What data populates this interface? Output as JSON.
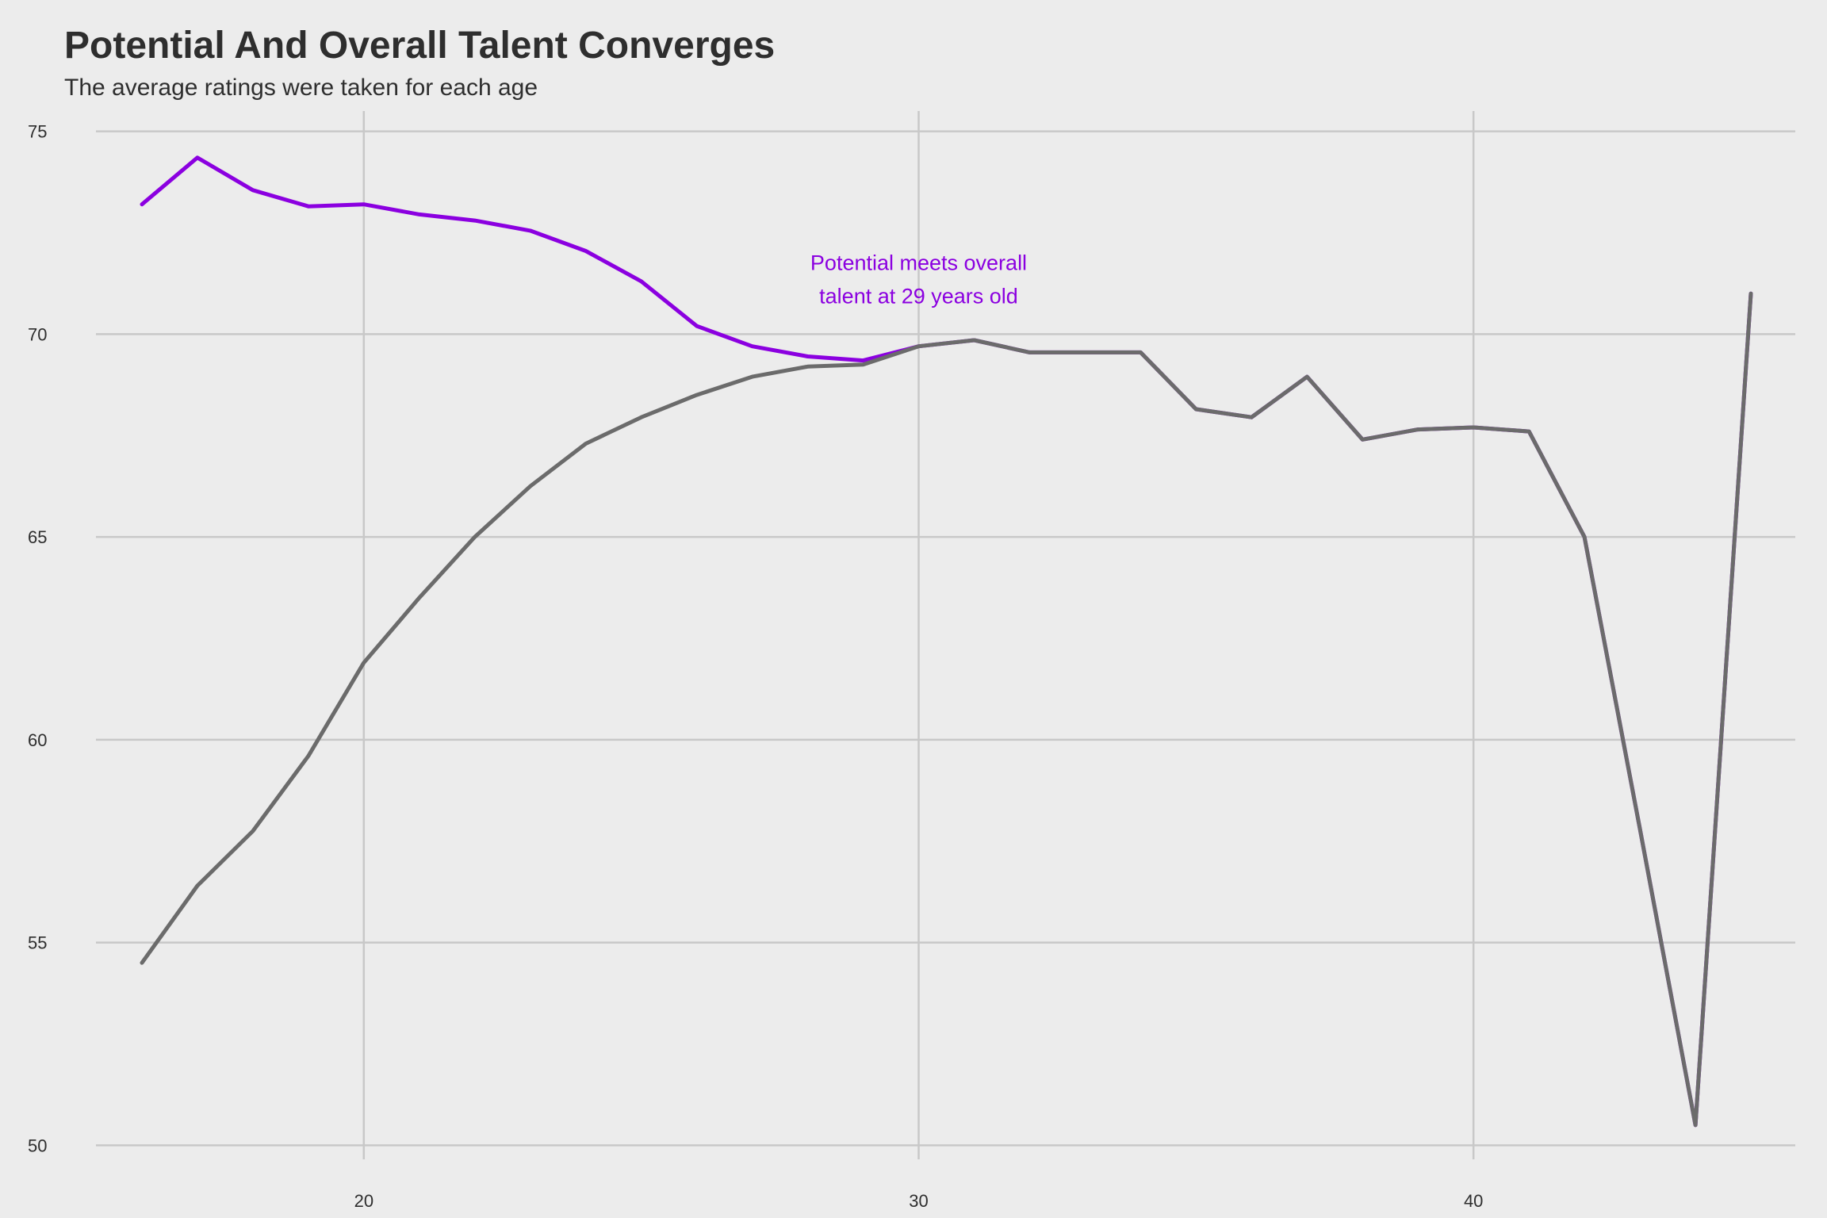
{
  "chart_data": {
    "type": "line",
    "title": "Potential And Overall Talent Converges",
    "subtitle": "The average ratings were taken for each age",
    "xlabel": "",
    "ylabel": "",
    "xlim": [
      14.6,
      45.8
    ],
    "ylim": [
      49.5,
      75.5
    ],
    "x_ticks": [
      20,
      30,
      40
    ],
    "y_ticks": [
      50,
      55,
      60,
      65,
      70,
      75
    ],
    "grid": true,
    "legend": "none",
    "x": [
      16,
      17,
      18,
      19,
      20,
      21,
      22,
      23,
      24,
      25,
      26,
      27,
      28,
      29,
      30,
      31,
      32,
      33,
      34,
      35,
      36,
      37,
      38,
      39,
      40,
      41,
      42,
      43,
      44,
      45
    ],
    "series": [
      {
        "color": "#8b00e0",
        "values": [
          73.2,
          74.35,
          73.55,
          73.15,
          73.2,
          72.95,
          72.8,
          72.55,
          72.05,
          71.3,
          70.2,
          69.7,
          69.45,
          69.35,
          69.7,
          69.85,
          69.55,
          69.55,
          69.55,
          68.15,
          67.95,
          68.95,
          67.4,
          67.65,
          67.7,
          67.6,
          65.0,
          57.8,
          50.5,
          71.0
        ]
      },
      {
        "color": "#6b6b6b",
        "values": [
          54.5,
          56.4,
          57.75,
          59.6,
          61.9,
          63.5,
          65.0,
          66.25,
          67.3,
          67.95,
          68.5,
          68.95,
          69.2,
          69.25,
          69.7,
          69.85,
          69.55,
          69.55,
          69.55,
          68.15,
          67.95,
          68.95,
          67.4,
          67.65,
          67.7,
          67.6,
          65.0,
          57.8,
          50.5,
          71.0
        ]
      }
    ],
    "annotation": {
      "lines": [
        "Potential meets overall",
        "talent at 29 years old"
      ],
      "x": 30,
      "y": 70.8,
      "color": "#8b00e0"
    }
  }
}
